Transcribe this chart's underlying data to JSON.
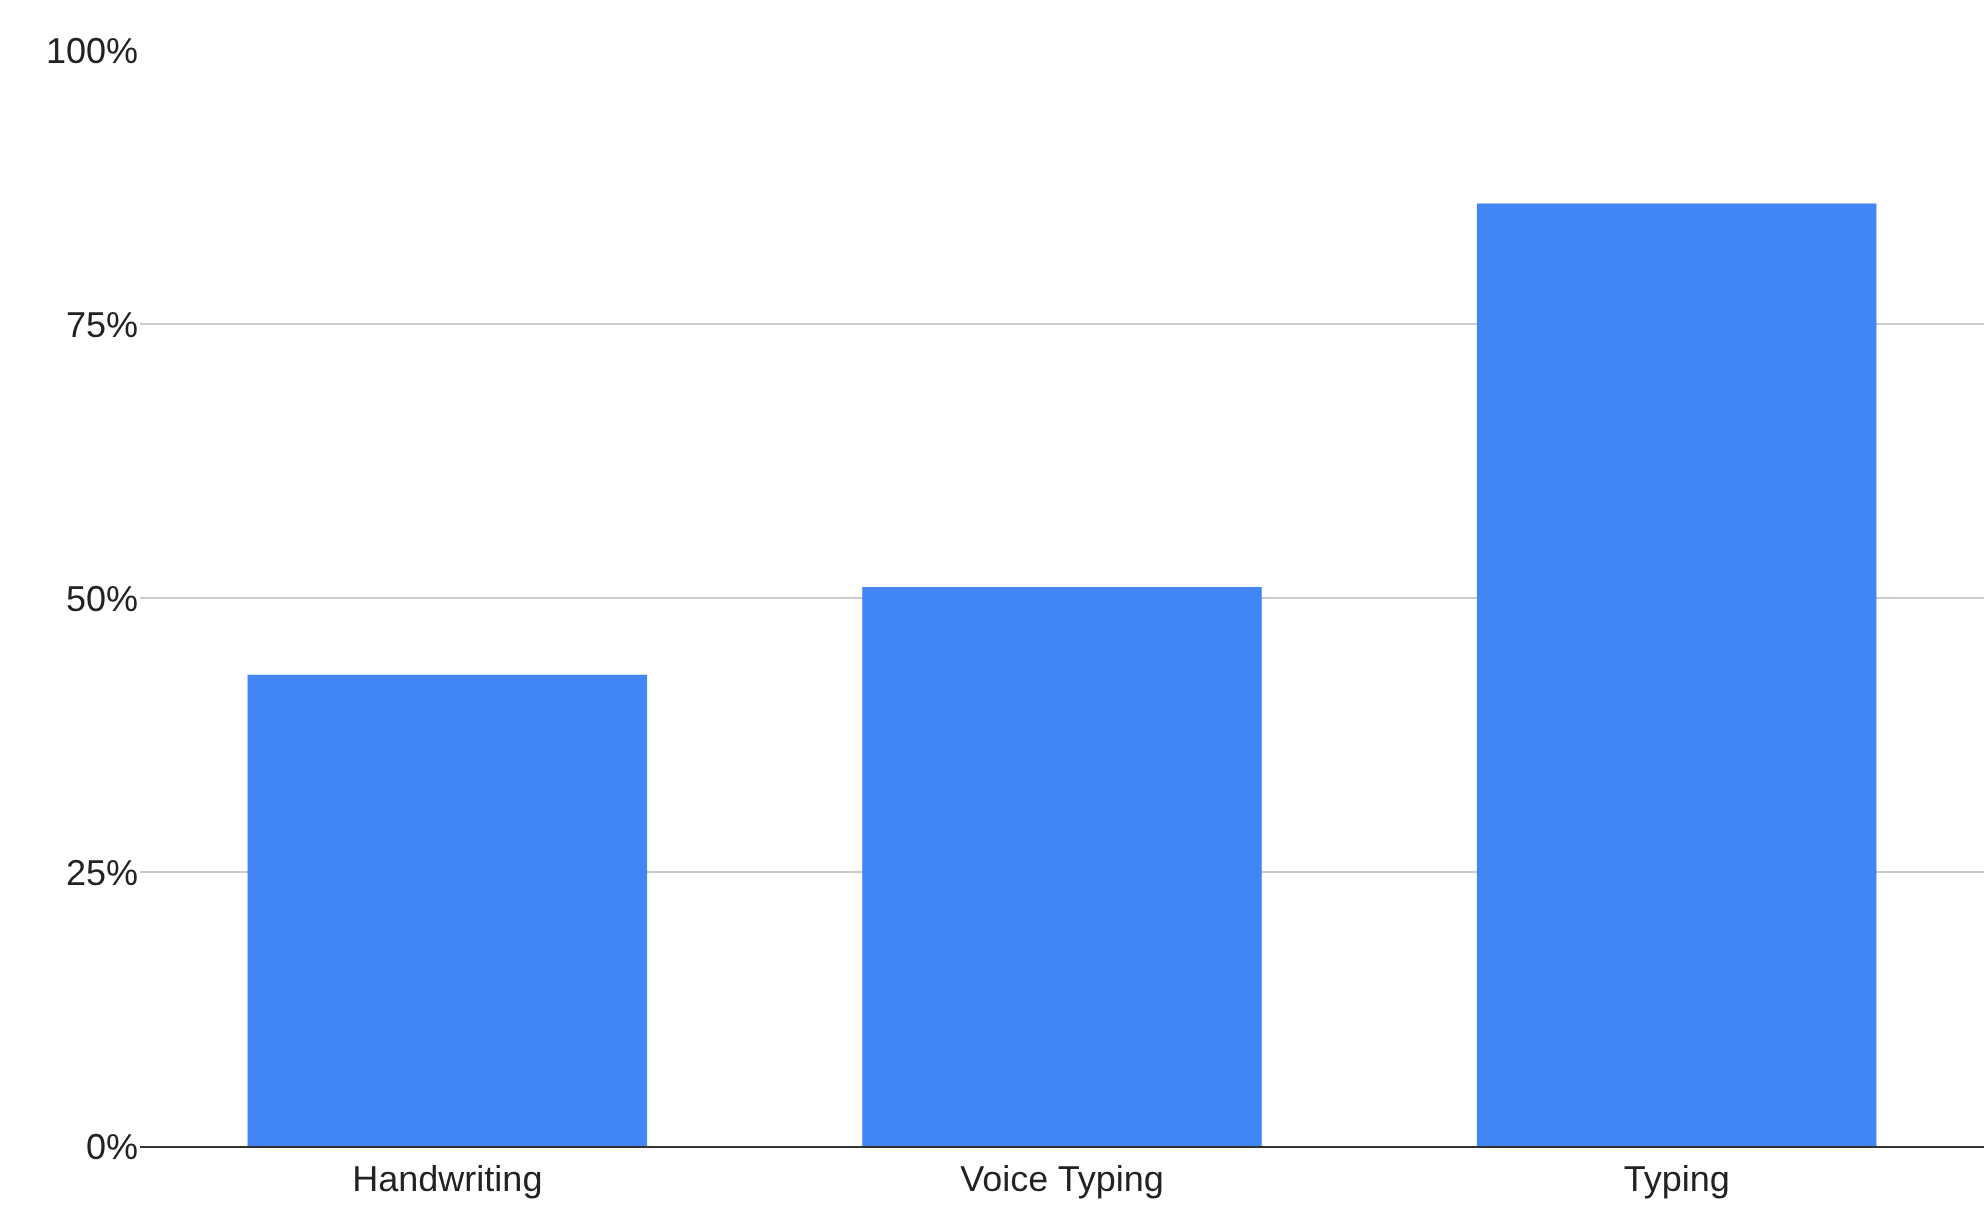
{
  "chart_data": {
    "type": "bar",
    "categories": [
      "Handwriting",
      "Voice Typing",
      "Typing"
    ],
    "values": [
      43,
      51,
      86
    ],
    "color": "#4285f4",
    "ylim": [
      0,
      100
    ],
    "yticks": [
      {
        "value": 0,
        "label": "0%"
      },
      {
        "value": 25,
        "label": "25%"
      },
      {
        "value": 50,
        "label": "50%"
      },
      {
        "value": 75,
        "label": "75%"
      },
      {
        "value": 100,
        "label": "100%"
      }
    ],
    "grid": "y",
    "legend": false
  }
}
